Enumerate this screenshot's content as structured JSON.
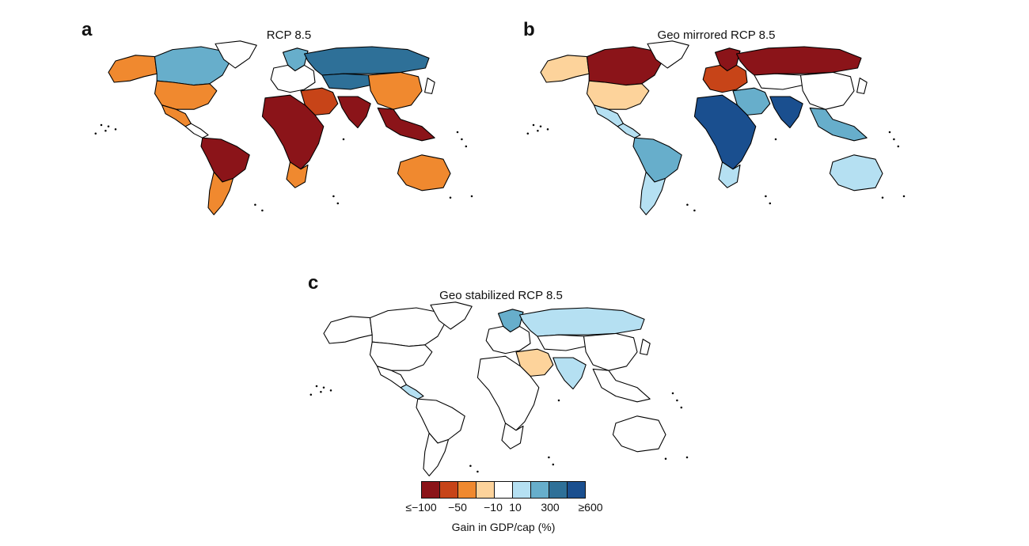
{
  "panels": [
    {
      "letter": "a",
      "title": "RCP 8.5",
      "colors": {
        "canada": "#67aecb",
        "usa": "#f0892f",
        "mexico": "#f0892f",
        "central_america": "#ffffff",
        "south_america": "#8b1419",
        "argentina": "#f0892f",
        "greenland": "#ffffff",
        "europe": "#ffffff",
        "scandinavia": "#67aecb",
        "russia": "#2e7098",
        "central_asia": "#2e7098",
        "middle_east": "#c74418",
        "africa": "#8b1419",
        "south_africa": "#f0892f",
        "india": "#8b1419",
        "china": "#f0892f",
        "southeast_asia": "#8b1419",
        "australia": "#f0892f",
        "alaska": "#f0892f",
        "japan": "#ffffff"
      }
    },
    {
      "letter": "b",
      "title": "Geo mirrored RCP 8.5",
      "colors": {
        "canada": "#8b1419",
        "usa": "#fdd39b",
        "mexico": "#b5e0f2",
        "central_america": "#b5e0f2",
        "south_america": "#67aecb",
        "argentina": "#b5e0f2",
        "greenland": "#ffffff",
        "europe": "#c74418",
        "scandinavia": "#8b1419",
        "russia": "#8b1419",
        "central_asia": "#ffffff",
        "middle_east": "#67aecb",
        "africa": "#1a4f8f",
        "south_africa": "#b5e0f2",
        "india": "#1a4f8f",
        "china": "#ffffff",
        "southeast_asia": "#67aecb",
        "australia": "#b5e0f2",
        "alaska": "#fdd39b",
        "japan": "#ffffff"
      }
    },
    {
      "letter": "c",
      "title": "Geo stabilized RCP 8.5",
      "colors": {
        "canada": "#ffffff",
        "usa": "#ffffff",
        "mexico": "#ffffff",
        "central_america": "#b5e0f2",
        "south_america": "#ffffff",
        "argentina": "#ffffff",
        "greenland": "#ffffff",
        "europe": "#ffffff",
        "scandinavia": "#67aecb",
        "russia": "#b5e0f2",
        "central_asia": "#ffffff",
        "middle_east": "#fdd39b",
        "africa": "#ffffff",
        "south_africa": "#ffffff",
        "india": "#b5e0f2",
        "china": "#ffffff",
        "southeast_asia": "#ffffff",
        "australia": "#ffffff",
        "alaska": "#ffffff",
        "japan": "#ffffff"
      }
    }
  ],
  "legend": {
    "colors": [
      "#8b1419",
      "#c74418",
      "#f0892f",
      "#fdd39b",
      "#ffffff",
      "#b5e0f2",
      "#67aecb",
      "#2e7098",
      "#1a4f8f"
    ],
    "ticks": [
      "≤−100",
      "−50",
      "−10",
      "10",
      "300",
      "≥600"
    ],
    "label": "Gain in GDP/cap (%)"
  }
}
